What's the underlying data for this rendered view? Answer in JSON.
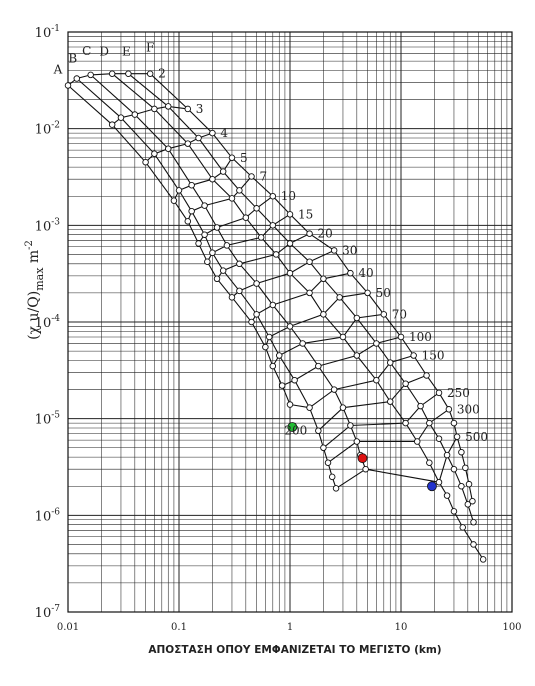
{
  "chart_data": {
    "type": "line",
    "title": "",
    "xlabel": "ΑΠΟΣΤΑΣΗ ΟΠΟΥ ΕΜΦΑΝΙΖΕΤΑΙ ΤΟ ΜΕΓΙΣΤΟ (km)",
    "ylabel": "(χ u/Q)max m-2",
    "xscale": "log",
    "yscale": "log",
    "xlim": [
      0.01,
      100
    ],
    "ylim": [
      1e-07,
      0.1
    ],
    "grid": true,
    "x_ticks": [
      {
        "value": 0.01,
        "label": "0.01"
      },
      {
        "value": 0.1,
        "label": "0.1"
      },
      {
        "value": 1,
        "label": "1"
      },
      {
        "value": 10,
        "label": "10"
      },
      {
        "value": 100,
        "label": "100"
      }
    ],
    "y_ticks": [
      {
        "value": 0.1,
        "base": "10",
        "exp": "-1"
      },
      {
        "value": 0.01,
        "base": "10",
        "exp": "-2"
      },
      {
        "value": 0.001,
        "base": "10",
        "exp": "-3"
      },
      {
        "value": 0.0001,
        "base": "10",
        "exp": "-4"
      },
      {
        "value": 1e-05,
        "base": "10",
        "exp": "-5"
      },
      {
        "value": 1e-06,
        "base": "10",
        "exp": "-6"
      },
      {
        "value": 1e-07,
        "base": "10",
        "exp": "-7"
      }
    ],
    "stability_classes": [
      {
        "name": "A",
        "points": [
          [
            0.01,
            0.028
          ],
          [
            0.025,
            0.011
          ],
          [
            0.05,
            0.0045
          ],
          [
            0.09,
            0.0018
          ],
          [
            0.12,
            0.0011
          ],
          [
            0.15,
            0.00065
          ],
          [
            0.18,
            0.00042
          ],
          [
            0.22,
            0.00028
          ],
          [
            0.3,
            0.00018
          ],
          [
            0.45,
            0.0001
          ],
          [
            0.6,
            5.5e-05
          ],
          [
            0.7,
            3.5e-05
          ],
          [
            0.85,
            2.2e-05
          ],
          [
            1,
            1.4e-05
          ]
        ]
      },
      {
        "name": "B",
        "points": [
          [
            0.012,
            0.033
          ],
          [
            0.03,
            0.013
          ],
          [
            0.06,
            0.0055
          ],
          [
            0.1,
            0.0023
          ],
          [
            0.13,
            0.0014
          ],
          [
            0.17,
            0.0008
          ],
          [
            0.2,
            0.00052
          ],
          [
            0.25,
            0.00034
          ],
          [
            0.35,
            0.00021
          ],
          [
            0.5,
            0.00012
          ],
          [
            0.65,
            7e-05
          ],
          [
            0.8,
            4.5e-05
          ],
          [
            1.1,
            2.5e-05
          ],
          [
            1.5,
            1.3e-05
          ],
          [
            1.8,
            7.5e-06
          ],
          [
            2,
            5e-06
          ],
          [
            2.2,
            3.5e-06
          ],
          [
            2.4,
            2.5e-06
          ],
          [
            2.6,
            1.9e-06
          ]
        ]
      },
      {
        "name": "C",
        "points": [
          [
            0.016,
            0.036
          ],
          [
            0.04,
            0.014
          ],
          [
            0.08,
            0.0062
          ],
          [
            0.13,
            0.0026
          ],
          [
            0.17,
            0.0016
          ],
          [
            0.22,
            0.00095
          ],
          [
            0.27,
            0.00062
          ],
          [
            0.35,
            0.0004
          ],
          [
            0.5,
            0.00025
          ],
          [
            0.7,
            0.00015
          ],
          [
            1,
            9e-05
          ],
          [
            1.3,
            6e-05
          ],
          [
            1.8,
            3.5e-05
          ],
          [
            2.5,
            2e-05
          ],
          [
            3,
            1.3e-05
          ],
          [
            3.5,
            8.5e-06
          ],
          [
            4,
            5.8e-06
          ],
          [
            4.3,
            4.2e-06
          ],
          [
            4.8,
            3e-06
          ]
        ]
      },
      {
        "name": "D",
        "points": [
          [
            0.025,
            0.037
          ],
          [
            0.06,
            0.016
          ],
          [
            0.12,
            0.007
          ],
          [
            0.2,
            0.003
          ],
          [
            0.3,
            0.0019
          ],
          [
            0.4,
            0.0012
          ],
          [
            0.55,
            0.00075
          ],
          [
            0.75,
            0.0005
          ],
          [
            1,
            0.00032
          ],
          [
            1.5,
            0.0002
          ],
          [
            2,
            0.00012
          ],
          [
            3,
            7e-05
          ],
          [
            4,
            4.5e-05
          ],
          [
            6,
            2.5e-05
          ],
          [
            8,
            1.5e-05
          ],
          [
            11,
            9e-06
          ],
          [
            14,
            5.8e-06
          ],
          [
            18,
            3.5e-06
          ],
          [
            22,
            2.2e-06
          ],
          [
            26,
            1.6e-06
          ],
          [
            30,
            1.1e-06
          ],
          [
            36,
            7.5e-07
          ],
          [
            45,
            5e-07
          ],
          [
            55,
            3.5e-07
          ]
        ]
      },
      {
        "name": "E",
        "points": [
          [
            0.035,
            0.037
          ],
          [
            0.08,
            0.017
          ],
          [
            0.15,
            0.008
          ],
          [
            0.25,
            0.0036
          ],
          [
            0.35,
            0.0023
          ],
          [
            0.5,
            0.0015
          ],
          [
            0.7,
            0.001
          ],
          [
            1,
            0.00065
          ],
          [
            1.5,
            0.00042
          ],
          [
            2,
            0.00028
          ],
          [
            2.8,
            0.00018
          ],
          [
            4,
            0.00011
          ],
          [
            6,
            6e-05
          ],
          [
            8,
            3.8e-05
          ],
          [
            11,
            2.3e-05
          ],
          [
            15,
            1.35e-05
          ],
          [
            18,
            9e-06
          ],
          [
            22,
            6.2e-06
          ],
          [
            26,
            4.2e-06
          ],
          [
            30,
            3e-06
          ],
          [
            35,
            2e-06
          ],
          [
            40,
            1.3e-06
          ],
          [
            45,
            8.5e-07
          ]
        ]
      },
      {
        "name": "F",
        "points": [
          [
            0.055,
            0.037
          ],
          [
            0.12,
            0.016
          ],
          [
            0.2,
            0.009
          ],
          [
            0.3,
            0.005
          ],
          [
            0.45,
            0.0032
          ],
          [
            0.7,
            0.002
          ],
          [
            1,
            0.0013
          ],
          [
            1.5,
            0.00082
          ],
          [
            2.5,
            0.00055
          ],
          [
            3.5,
            0.00032
          ],
          [
            5,
            0.0002
          ],
          [
            7,
            0.00012
          ],
          [
            10,
            7e-05
          ],
          [
            13,
            4.5e-05
          ],
          [
            17,
            2.8e-05
          ],
          [
            22,
            1.85e-05
          ],
          [
            27,
            1.25e-05
          ],
          [
            30,
            9e-06
          ],
          [
            32,
            6.5e-06
          ],
          [
            35,
            4.5e-06
          ],
          [
            38,
            3.1e-06
          ],
          [
            41,
            2.1e-06
          ],
          [
            44,
            1.4e-06
          ]
        ]
      }
    ],
    "heights": [
      {
        "label": "2",
        "points": [
          [
            0.01,
            0.028
          ],
          [
            0.012,
            0.033
          ],
          [
            0.016,
            0.036
          ],
          [
            0.025,
            0.037
          ],
          [
            0.035,
            0.037
          ],
          [
            0.055,
            0.037
          ]
        ]
      },
      {
        "label": "3",
        "points": [
          [
            0.025,
            0.011
          ],
          [
            0.03,
            0.013
          ],
          [
            0.04,
            0.014
          ],
          [
            0.06,
            0.016
          ],
          [
            0.08,
            0.017
          ],
          [
            0.12,
            0.016
          ]
        ]
      },
      {
        "label": "4",
        "points": [
          [
            0.05,
            0.0045
          ],
          [
            0.06,
            0.0055
          ],
          [
            0.08,
            0.0062
          ],
          [
            0.12,
            0.007
          ],
          [
            0.15,
            0.008
          ],
          [
            0.2,
            0.009
          ]
        ]
      },
      {
        "label": "5",
        "points": [
          [
            0.09,
            0.0018
          ],
          [
            0.1,
            0.0023
          ],
          [
            0.13,
            0.0026
          ],
          [
            0.2,
            0.003
          ],
          [
            0.25,
            0.0036
          ],
          [
            0.3,
            0.005
          ]
        ]
      },
      {
        "label": "7",
        "points": [
          [
            0.12,
            0.0011
          ],
          [
            0.13,
            0.0014
          ],
          [
            0.17,
            0.0016
          ],
          [
            0.3,
            0.0019
          ],
          [
            0.35,
            0.0023
          ],
          [
            0.45,
            0.0032
          ]
        ]
      },
      {
        "label": "10",
        "points": [
          [
            0.15,
            0.00065
          ],
          [
            0.17,
            0.0008
          ],
          [
            0.22,
            0.00095
          ],
          [
            0.4,
            0.0012
          ],
          [
            0.5,
            0.0015
          ],
          [
            0.7,
            0.002
          ]
        ]
      },
      {
        "label": "15",
        "points": [
          [
            0.18,
            0.00042
          ],
          [
            0.2,
            0.00052
          ],
          [
            0.27,
            0.00062
          ],
          [
            0.55,
            0.00075
          ],
          [
            0.7,
            0.001
          ],
          [
            1,
            0.0013
          ]
        ]
      },
      {
        "label": "20",
        "points": [
          [
            0.22,
            0.00028
          ],
          [
            0.25,
            0.00034
          ],
          [
            0.35,
            0.0004
          ],
          [
            0.75,
            0.0005
          ],
          [
            1,
            0.00065
          ],
          [
            1.5,
            0.00082
          ]
        ]
      },
      {
        "label": "30",
        "points": [
          [
            0.3,
            0.00018
          ],
          [
            0.35,
            0.00021
          ],
          [
            0.5,
            0.00025
          ],
          [
            1,
            0.00032
          ],
          [
            1.5,
            0.00042
          ],
          [
            2.5,
            0.00055
          ]
        ]
      },
      {
        "label": "40",
        "points": [
          [
            0.45,
            0.0001
          ],
          [
            0.5,
            0.00012
          ],
          [
            0.7,
            0.00015
          ],
          [
            1.5,
            0.0002
          ],
          [
            2,
            0.00028
          ],
          [
            3.5,
            0.00032
          ]
        ]
      },
      {
        "label": "50",
        "points": [
          [
            0.6,
            5.5e-05
          ],
          [
            0.65,
            7e-05
          ],
          [
            1,
            9e-05
          ],
          [
            2,
            0.00012
          ],
          [
            2.8,
            0.00018
          ],
          [
            5,
            0.0002
          ]
        ]
      },
      {
        "label": "70",
        "points": [
          [
            0.7,
            3.5e-05
          ],
          [
            0.8,
            4.5e-05
          ],
          [
            1.3,
            6e-05
          ],
          [
            3,
            7e-05
          ],
          [
            4,
            0.00011
          ],
          [
            7,
            0.00012
          ]
        ]
      },
      {
        "label": "100",
        "points": [
          [
            0.85,
            2.2e-05
          ],
          [
            1.1,
            2.5e-05
          ],
          [
            1.8,
            3.5e-05
          ],
          [
            4,
            4.5e-05
          ],
          [
            6,
            6e-05
          ],
          [
            10,
            7e-05
          ]
        ]
      },
      {
        "label": "150",
        "points": [
          [
            1,
            1.4e-05
          ],
          [
            1.5,
            1.3e-05
          ],
          [
            2.5,
            2e-05
          ],
          [
            6,
            2.5e-05
          ],
          [
            8,
            3.8e-05
          ],
          [
            13,
            4.5e-05
          ]
        ]
      },
      {
        "label": "200",
        "points": [
          [
            1.8,
            7.5e-06
          ],
          [
            3,
            1.3e-05
          ],
          [
            8,
            1.5e-05
          ],
          [
            11,
            2.3e-05
          ],
          [
            17,
            2.8e-05
          ]
        ]
      },
      {
        "label": "250",
        "points": [
          [
            2,
            5e-06
          ],
          [
            3.5,
            8.5e-06
          ],
          [
            11,
            9e-06
          ],
          [
            15,
            1.35e-05
          ],
          [
            22,
            1.85e-05
          ]
        ]
      },
      {
        "label": "300",
        "points": [
          [
            2.2,
            3.5e-06
          ],
          [
            4,
            5.8e-06
          ],
          [
            14,
            5.8e-06
          ],
          [
            18,
            9e-06
          ],
          [
            27,
            1.25e-05
          ]
        ]
      },
      {
        "label": "500",
        "points": [
          [
            2.6,
            1.9e-06
          ],
          [
            4.8,
            3e-06
          ],
          [
            22,
            2.2e-06
          ],
          [
            26,
            4.2e-06
          ],
          [
            32,
            6.5e-06
          ]
        ]
      }
    ],
    "highlighted_points": [
      {
        "color": "green",
        "hex": "#22bb33",
        "x": 1.05,
        "y": 8.2e-06
      },
      {
        "color": "red",
        "hex": "#dd1111",
        "x": 4.5,
        "y": 3.9e-06
      },
      {
        "color": "blue",
        "hex": "#2233cc",
        "x": 19,
        "y": 2e-06
      }
    ]
  }
}
